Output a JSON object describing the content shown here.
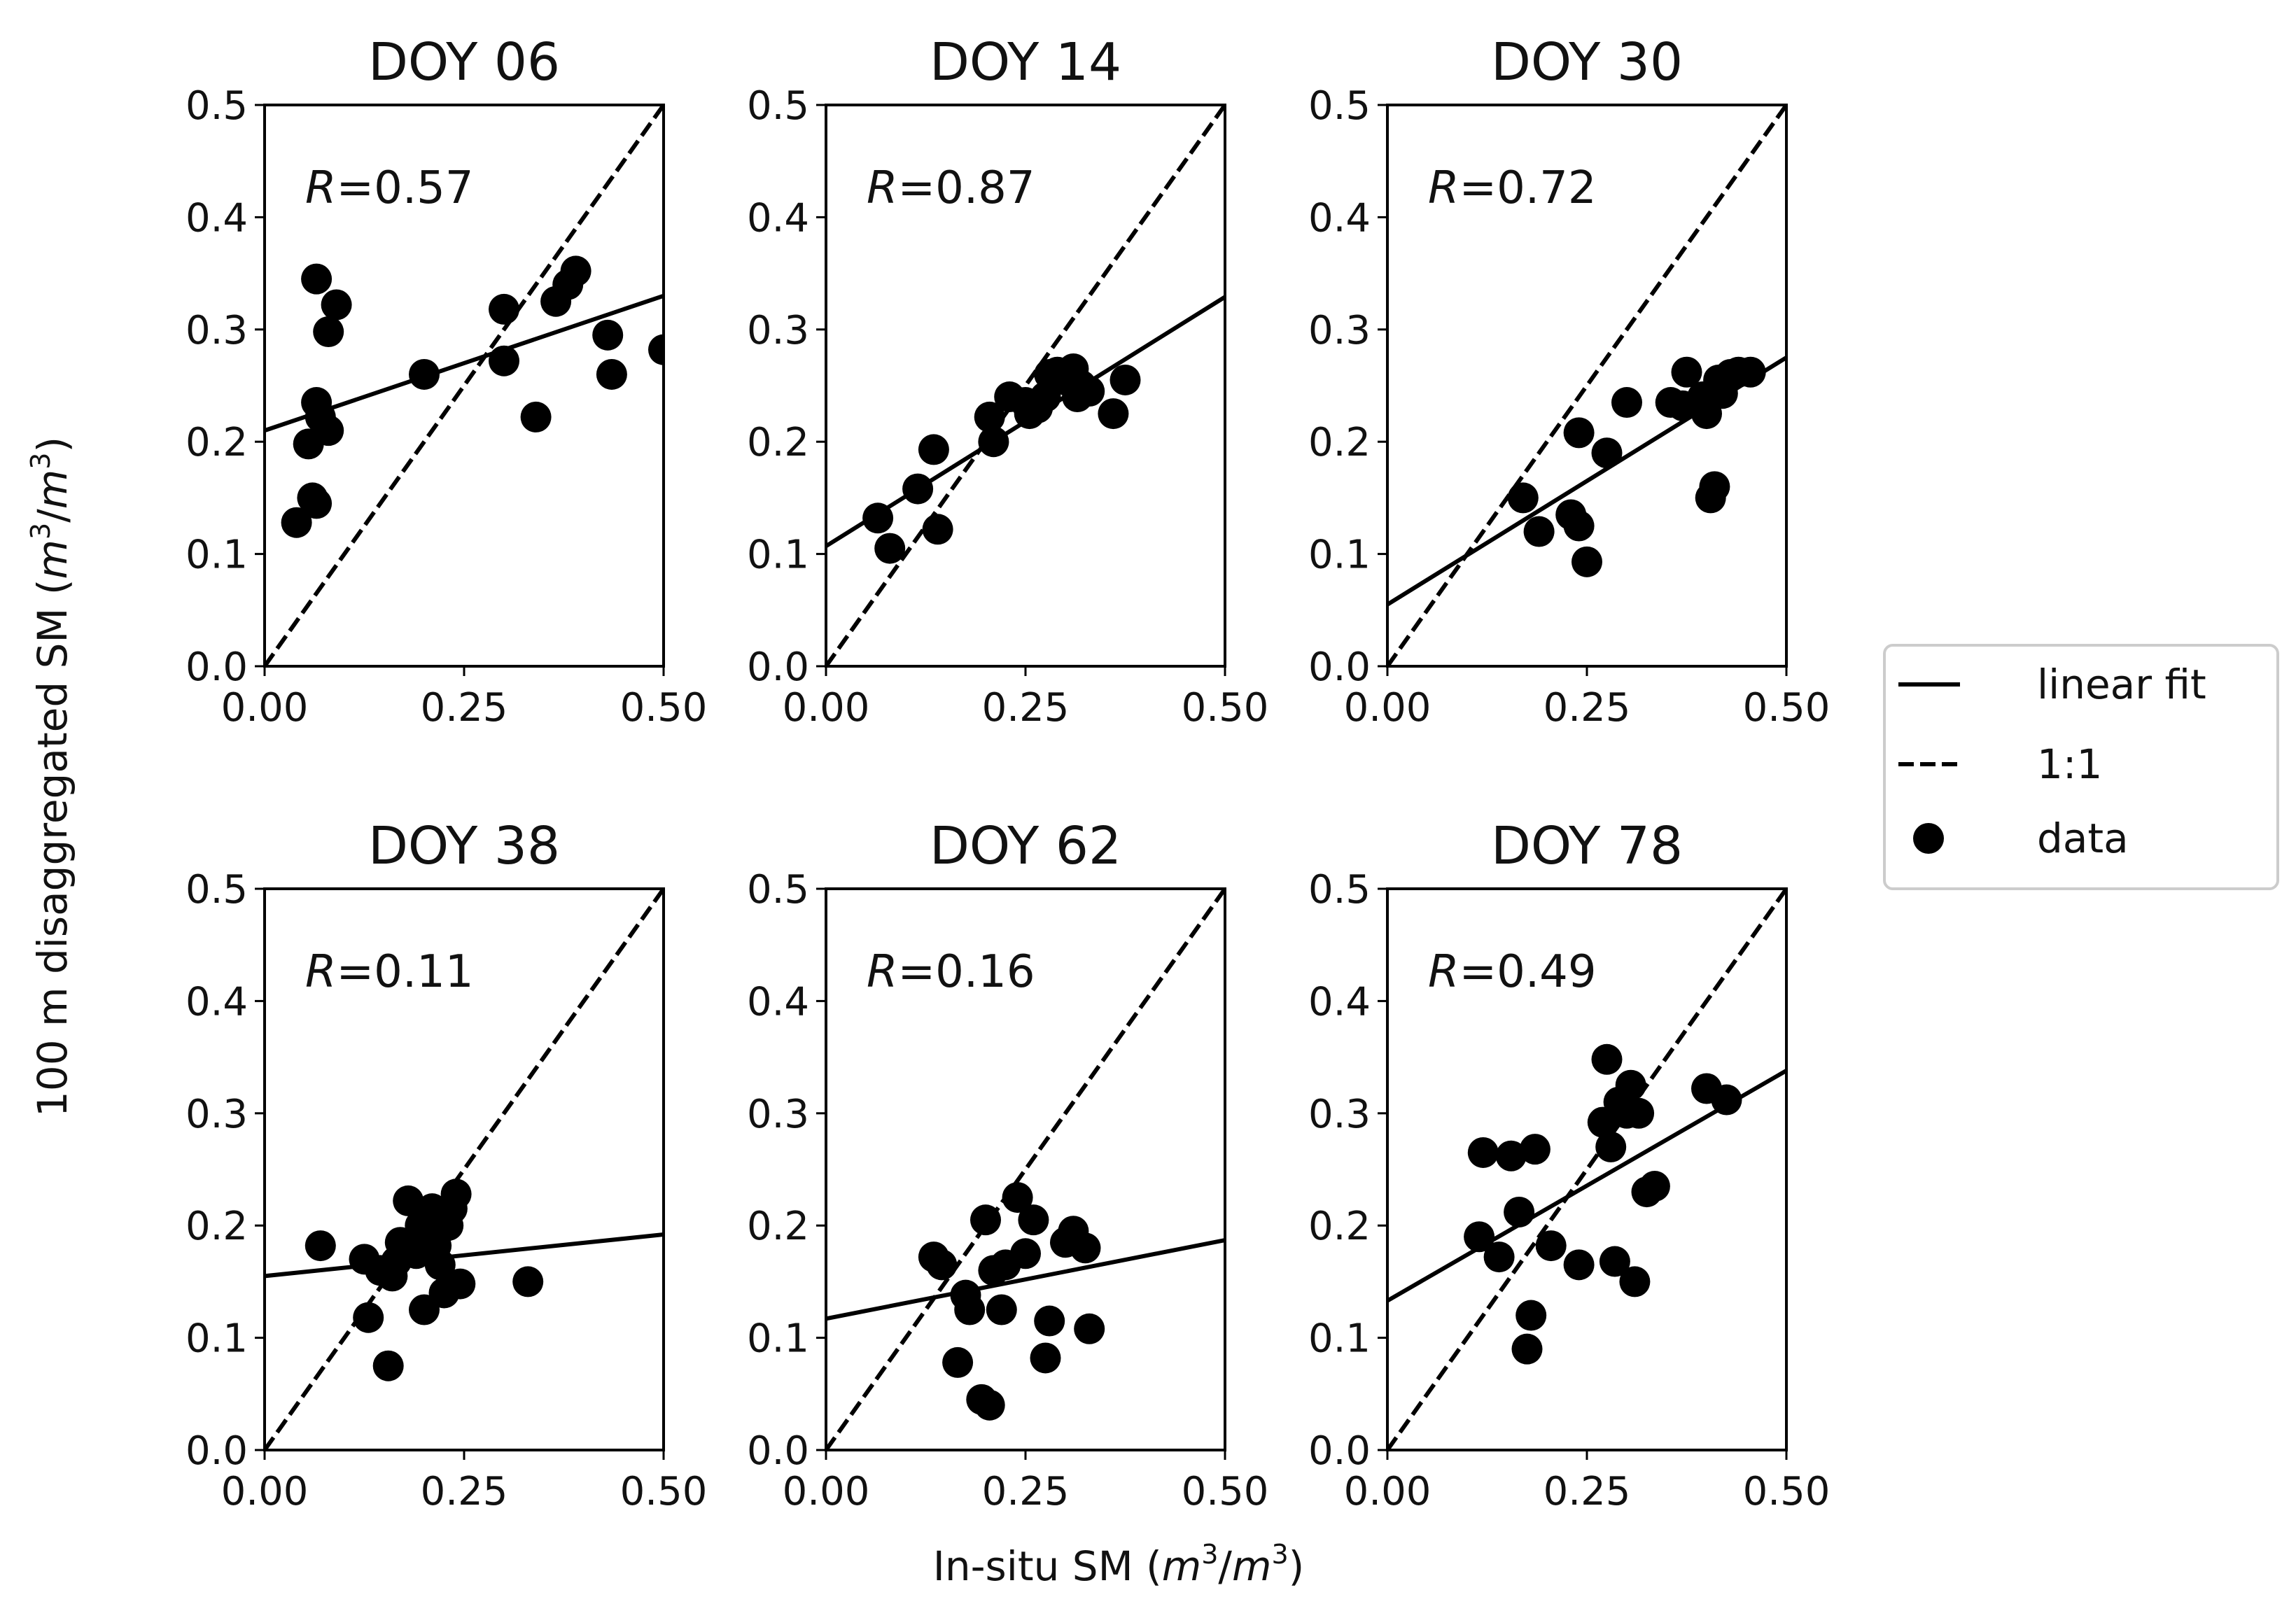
{
  "figure": {
    "ylabel_prefix": "100 m disaggregated SM (",
    "xlabel_prefix": "In-situ SM (",
    "unit_m": "m",
    "unit_exp": "3",
    "unit_sep": "/",
    "unit_close": ")"
  },
  "legend": {
    "items": [
      {
        "label": "linear fit",
        "style": "solid-line"
      },
      {
        "label": "1:1",
        "style": "dashed-line"
      },
      {
        "label": "data",
        "style": "filled-circle"
      }
    ]
  },
  "chart_data": [
    {
      "type": "scatter",
      "title": "DOY 06",
      "r_label": "R",
      "r_value": "=0.57",
      "xlim": [
        0,
        0.5
      ],
      "ylim": [
        0,
        0.5
      ],
      "xticks": [
        "0.00",
        "0.25",
        "0.50"
      ],
      "yticks": [
        "0.0",
        "0.1",
        "0.2",
        "0.3",
        "0.4",
        "0.5"
      ],
      "fit": {
        "intercept": 0.21,
        "slope": 0.24
      },
      "one_to_one": true,
      "points": [
        [
          0.065,
          0.345
        ],
        [
          0.09,
          0.322
        ],
        [
          0.08,
          0.298
        ],
        [
          0.065,
          0.235
        ],
        [
          0.07,
          0.222
        ],
        [
          0.08,
          0.21
        ],
        [
          0.055,
          0.198
        ],
        [
          0.06,
          0.15
        ],
        [
          0.065,
          0.145
        ],
        [
          0.04,
          0.128
        ],
        [
          0.2,
          0.26
        ],
        [
          0.3,
          0.318
        ],
        [
          0.3,
          0.272
        ],
        [
          0.34,
          0.222
        ],
        [
          0.365,
          0.325
        ],
        [
          0.38,
          0.34
        ],
        [
          0.39,
          0.352
        ],
        [
          0.43,
          0.295
        ],
        [
          0.435,
          0.26
        ],
        [
          0.5,
          0.282
        ]
      ]
    },
    {
      "type": "scatter",
      "title": "DOY 14",
      "r_label": "R",
      "r_value": "=0.87",
      "xlim": [
        0,
        0.5
      ],
      "ylim": [
        0,
        0.5
      ],
      "xticks": [
        "0.00",
        "0.25",
        "0.50"
      ],
      "yticks": [
        "0.0",
        "0.1",
        "0.2",
        "0.3",
        "0.4",
        "0.5"
      ],
      "fit": {
        "intercept": 0.107,
        "slope": 0.444
      },
      "one_to_one": true,
      "points": [
        [
          0.065,
          0.132
        ],
        [
          0.08,
          0.105
        ],
        [
          0.115,
          0.158
        ],
        [
          0.135,
          0.193
        ],
        [
          0.14,
          0.122
        ],
        [
          0.205,
          0.222
        ],
        [
          0.21,
          0.2
        ],
        [
          0.23,
          0.24
        ],
        [
          0.25,
          0.235
        ],
        [
          0.255,
          0.225
        ],
        [
          0.265,
          0.23
        ],
        [
          0.275,
          0.24
        ],
        [
          0.28,
          0.26
        ],
        [
          0.29,
          0.262
        ],
        [
          0.3,
          0.255
        ],
        [
          0.31,
          0.265
        ],
        [
          0.315,
          0.24
        ],
        [
          0.32,
          0.25
        ],
        [
          0.33,
          0.245
        ],
        [
          0.36,
          0.225
        ],
        [
          0.375,
          0.255
        ]
      ]
    },
    {
      "type": "scatter",
      "title": "DOY 30",
      "r_label": "R",
      "r_value": "=0.72",
      "xlim": [
        0,
        0.5
      ],
      "ylim": [
        0,
        0.5
      ],
      "xticks": [
        "0.00",
        "0.25",
        "0.50"
      ],
      "yticks": [
        "0.0",
        "0.1",
        "0.2",
        "0.3",
        "0.4",
        "0.5"
      ],
      "fit": {
        "intercept": 0.055,
        "slope": 0.44
      },
      "one_to_one": true,
      "points": [
        [
          0.17,
          0.15
        ],
        [
          0.19,
          0.12
        ],
        [
          0.23,
          0.135
        ],
        [
          0.24,
          0.208
        ],
        [
          0.24,
          0.125
        ],
        [
          0.25,
          0.093
        ],
        [
          0.275,
          0.19
        ],
        [
          0.3,
          0.235
        ],
        [
          0.355,
          0.235
        ],
        [
          0.37,
          0.232
        ],
        [
          0.375,
          0.262
        ],
        [
          0.395,
          0.24
        ],
        [
          0.4,
          0.225
        ],
        [
          0.405,
          0.15
        ],
        [
          0.41,
          0.16
        ],
        [
          0.415,
          0.255
        ],
        [
          0.42,
          0.243
        ],
        [
          0.43,
          0.26
        ],
        [
          0.44,
          0.262
        ],
        [
          0.455,
          0.262
        ]
      ]
    },
    {
      "type": "scatter",
      "title": "DOY 38",
      "r_label": "R",
      "r_value": "=0.11",
      "xlim": [
        0,
        0.5
      ],
      "ylim": [
        0,
        0.5
      ],
      "xticks": [
        "0.00",
        "0.25",
        "0.50"
      ],
      "yticks": [
        "0.0",
        "0.1",
        "0.2",
        "0.3",
        "0.4",
        "0.5"
      ],
      "fit": {
        "intercept": 0.155,
        "slope": 0.074
      },
      "one_to_one": true,
      "points": [
        [
          0.07,
          0.182
        ],
        [
          0.125,
          0.17
        ],
        [
          0.13,
          0.118
        ],
        [
          0.145,
          0.16
        ],
        [
          0.155,
          0.075
        ],
        [
          0.16,
          0.155
        ],
        [
          0.165,
          0.168
        ],
        [
          0.17,
          0.185
        ],
        [
          0.18,
          0.222
        ],
        [
          0.19,
          0.175
        ],
        [
          0.195,
          0.2
        ],
        [
          0.2,
          0.125
        ],
        [
          0.21,
          0.215
        ],
        [
          0.215,
          0.182
        ],
        [
          0.22,
          0.165
        ],
        [
          0.225,
          0.14
        ],
        [
          0.23,
          0.2
        ],
        [
          0.235,
          0.215
        ],
        [
          0.24,
          0.228
        ],
        [
          0.245,
          0.148
        ],
        [
          0.33,
          0.15
        ]
      ]
    },
    {
      "type": "scatter",
      "title": "DOY 62",
      "r_label": "R",
      "r_value": "=0.16",
      "xlim": [
        0,
        0.5
      ],
      "ylim": [
        0,
        0.5
      ],
      "xticks": [
        "0.00",
        "0.25",
        "0.50"
      ],
      "yticks": [
        "0.0",
        "0.1",
        "0.2",
        "0.3",
        "0.4",
        "0.5"
      ],
      "fit": {
        "intercept": 0.117,
        "slope": 0.14
      },
      "one_to_one": true,
      "points": [
        [
          0.135,
          0.172
        ],
        [
          0.145,
          0.165
        ],
        [
          0.165,
          0.078
        ],
        [
          0.175,
          0.138
        ],
        [
          0.18,
          0.125
        ],
        [
          0.195,
          0.045
        ],
        [
          0.2,
          0.205
        ],
        [
          0.205,
          0.04
        ],
        [
          0.21,
          0.16
        ],
        [
          0.22,
          0.125
        ],
        [
          0.225,
          0.165
        ],
        [
          0.24,
          0.225
        ],
        [
          0.25,
          0.175
        ],
        [
          0.26,
          0.205
        ],
        [
          0.275,
          0.082
        ],
        [
          0.28,
          0.115
        ],
        [
          0.3,
          0.185
        ],
        [
          0.31,
          0.195
        ],
        [
          0.325,
          0.18
        ],
        [
          0.33,
          0.108
        ]
      ]
    },
    {
      "type": "scatter",
      "title": "DOY 78",
      "r_label": "R",
      "r_value": "=0.49",
      "xlim": [
        0,
        0.5
      ],
      "ylim": [
        0,
        0.5
      ],
      "xticks": [
        "0.00",
        "0.25",
        "0.50"
      ],
      "yticks": [
        "0.0",
        "0.1",
        "0.2",
        "0.3",
        "0.4",
        "0.5"
      ],
      "fit": {
        "intercept": 0.133,
        "slope": 0.41
      },
      "one_to_one": true,
      "points": [
        [
          0.115,
          0.19
        ],
        [
          0.12,
          0.265
        ],
        [
          0.14,
          0.172
        ],
        [
          0.155,
          0.262
        ],
        [
          0.165,
          0.212
        ],
        [
          0.175,
          0.09
        ],
        [
          0.18,
          0.12
        ],
        [
          0.185,
          0.268
        ],
        [
          0.205,
          0.182
        ],
        [
          0.24,
          0.165
        ],
        [
          0.27,
          0.292
        ],
        [
          0.275,
          0.348
        ],
        [
          0.28,
          0.27
        ],
        [
          0.285,
          0.168
        ],
        [
          0.29,
          0.31
        ],
        [
          0.3,
          0.3
        ],
        [
          0.305,
          0.325
        ],
        [
          0.31,
          0.15
        ],
        [
          0.315,
          0.3
        ],
        [
          0.325,
          0.23
        ],
        [
          0.335,
          0.235
        ],
        [
          0.4,
          0.322
        ],
        [
          0.425,
          0.312
        ]
      ]
    }
  ]
}
